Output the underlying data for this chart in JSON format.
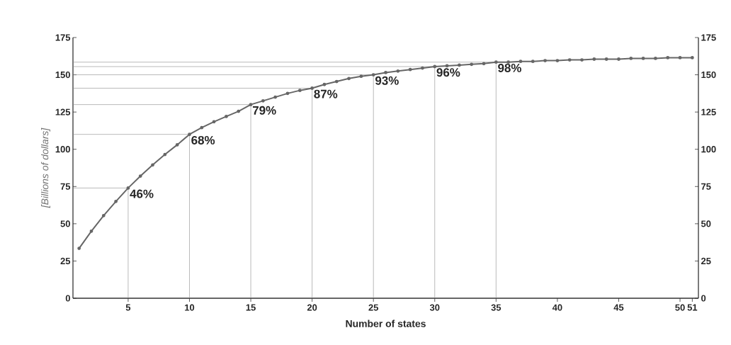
{
  "chart_data": {
    "type": "line",
    "xlabel": "Number of states",
    "ylabel": "[Billions of dollars]",
    "x": [
      1,
      2,
      3,
      4,
      5,
      6,
      7,
      8,
      9,
      10,
      11,
      12,
      13,
      14,
      15,
      16,
      17,
      18,
      19,
      20,
      21,
      22,
      23,
      24,
      25,
      26,
      27,
      28,
      29,
      30,
      31,
      32,
      33,
      34,
      35,
      36,
      37,
      38,
      39,
      40,
      41,
      42,
      43,
      44,
      45,
      46,
      47,
      48,
      49,
      50,
      51
    ],
    "series": [
      {
        "color": "#8c8c8c",
        "marker": "none",
        "x": [
          0.5,
          5,
          5
        ],
        "values": [
          74,
          74,
          0
        ]
      },
      {
        "color": "#8c8c8c",
        "marker": "none",
        "x": [
          0.5,
          10,
          10
        ],
        "values": [
          110,
          110,
          0
        ]
      },
      {
        "color": "#8c8c8c",
        "marker": "none",
        "x": [
          0.5,
          15,
          15
        ],
        "values": [
          130,
          130,
          0
        ]
      },
      {
        "color": "#8c8c8c",
        "marker": "none",
        "x": [
          0.5,
          20,
          20
        ],
        "values": [
          141,
          141,
          0
        ]
      },
      {
        "color": "#8c8c8c",
        "marker": "none",
        "x": [
          0.5,
          25,
          25
        ],
        "values": [
          150,
          150,
          0
        ]
      },
      {
        "color": "#8c8c8c",
        "marker": "none",
        "x": [
          0.5,
          30,
          30
        ],
        "values": [
          155.5,
          155.5,
          0
        ]
      },
      {
        "color": "#8c8c8c",
        "marker": "none",
        "x": [
          0.5,
          35,
          35
        ],
        "values": [
          158.5,
          158.5,
          0
        ]
      },
      {
        "color": "#666666",
        "values": [
          33.5,
          45,
          55.5,
          65,
          74,
          82,
          89.5,
          96.5,
          103,
          110,
          114.5,
          118.5,
          122,
          125.5,
          130,
          132.5,
          135,
          137.5,
          139.5,
          141,
          143.5,
          145.5,
          147.5,
          149,
          150,
          151.5,
          152.5,
          153.5,
          154.5,
          155.5,
          156,
          156.5,
          157,
          157.5,
          158.5,
          158.5,
          159,
          159,
          159.5,
          159.5,
          160,
          160,
          160.5,
          160.5,
          160.5,
          161,
          161,
          161,
          161.5,
          161.5,
          161.5
        ]
      }
    ],
    "annotations": [
      {
        "text": "46%",
        "x": 5,
        "y": 74
      },
      {
        "text": "68%",
        "x": 10,
        "y": 110
      },
      {
        "text": "79%",
        "x": 15,
        "y": 130
      },
      {
        "text": "87%",
        "x": 20,
        "y": 141
      },
      {
        "text": "93%",
        "x": 25,
        "y": 150
      },
      {
        "text": "96%",
        "x": 30,
        "y": 155.5
      },
      {
        "text": "98%",
        "x": 35,
        "y": 158.5
      }
    ],
    "xlim": [
      0.5,
      51.5
    ],
    "xticks": [
      5,
      10,
      15,
      20,
      25,
      30,
      35,
      40,
      45,
      50,
      51
    ],
    "ylim": [
      0,
      175
    ],
    "yticks": [
      0,
      25,
      50,
      75,
      100,
      125,
      150,
      175
    ],
    "y2lim": [
      0,
      175
    ],
    "y2ticks": [
      0,
      25,
      50,
      75,
      100,
      125,
      150,
      175
    ],
    "marker": "circle",
    "line_style": "solid"
  }
}
